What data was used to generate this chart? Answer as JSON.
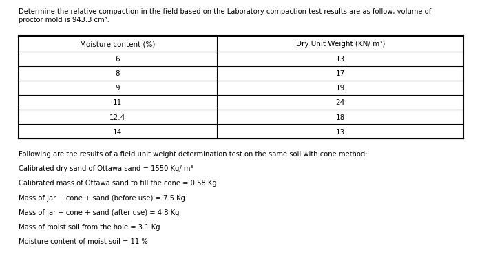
{
  "title_line1": "Determine the relative compaction in the field based on the Laboratory compaction test results are as follow, volume of",
  "title_line2": "proctor mold is 943.3 cm³:",
  "col1_header": "Moisture content (%)",
  "col2_header": "Dry Unit Weight (KN/ m³)",
  "moisture": [
    "6",
    "8",
    "9",
    "11",
    "12.4",
    "14"
  ],
  "dry_unit_weight": [
    "13",
    "17",
    "19",
    "24",
    "18",
    "13"
  ],
  "following_text": "Following are the results of a field unit weight determination test on the same soil with cone method:",
  "bullet1": "Calibrated dry sand of Ottawa sand = 1550 Kg/ m³",
  "bullet2": "Calibrated mass of Ottawa sand to fill the cone = 0.58 Kg",
  "bullet3": "Mass of jar + cone + sand (before use) = 7.5 Kg",
  "bullet4": "Mass of jar + cone + sand (after use) = 4.8 Kg",
  "bullet5": "Mass of moist soil from the hole = 3.1 Kg",
  "bullet6": "Moisture content of moist soil = 11 %",
  "bg_color": "#ffffff",
  "text_color": "#000000",
  "table_border_color": "#000000",
  "font_size_title": 7.2,
  "font_size_table": 7.5,
  "font_size_body": 7.2
}
